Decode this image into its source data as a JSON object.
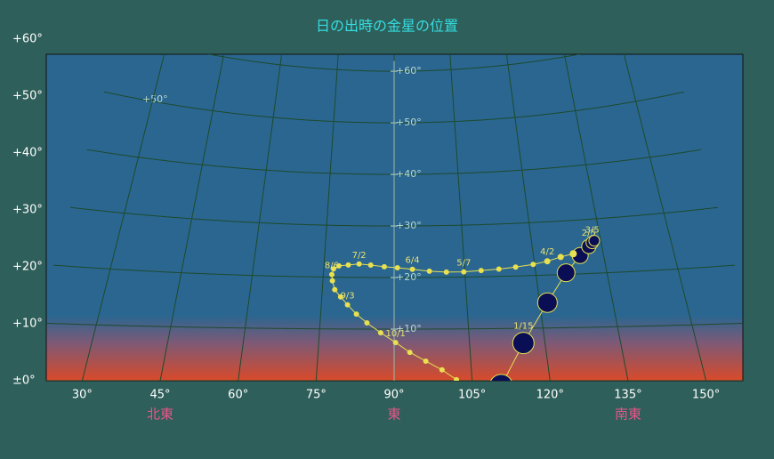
{
  "chart_data": {
    "type": "sky-track",
    "title": "日の出時の金星の位置",
    "xlim": [
      23,
      157
    ],
    "ylim": [
      0,
      60
    ],
    "xticks": [
      {
        "value": 30,
        "label": "30°"
      },
      {
        "value": 45,
        "label": "45°"
      },
      {
        "value": 60,
        "label": "60°"
      },
      {
        "value": 75,
        "label": "75°"
      },
      {
        "value": 90,
        "label": "90°"
      },
      {
        "value": 105,
        "label": "105°"
      },
      {
        "value": 120,
        "label": "120°"
      },
      {
        "value": 135,
        "label": "135°"
      },
      {
        "value": 150,
        "label": "150°"
      }
    ],
    "yticks": [
      {
        "value": 0,
        "label": "±0°"
      },
      {
        "value": 10,
        "label": "+10°"
      },
      {
        "value": 20,
        "label": "+20°"
      },
      {
        "value": 30,
        "label": "+30°"
      },
      {
        "value": 40,
        "label": "+40°"
      },
      {
        "value": 50,
        "label": "+50°"
      },
      {
        "value": 60,
        "label": "+60°"
      }
    ],
    "directions": [
      {
        "value": 45,
        "label": "北東"
      },
      {
        "value": 90,
        "label": "東"
      },
      {
        "value": 135,
        "label": "南東"
      }
    ],
    "grid": true,
    "series": [
      {
        "color": "#e8e050",
        "x": [
          110.5,
          115.7,
          121.6,
          126.4,
          130.0,
          132.2,
          133.1,
          133.6,
          128.6,
          125.8,
          122.8,
          119.7,
          115.9,
          112.3,
          108.5,
          104.8,
          101.1,
          97.5,
          93.9,
          90.7,
          87.9,
          85.0,
          82.5,
          80.2,
          78.2,
          77.1,
          76.8,
          77.0,
          77.6,
          78.9,
          80.4,
          82.3,
          84.5,
          87.3,
          90.3,
          93.1,
          96.2,
          99.3,
          102.0
        ],
        "values": [
          -1,
          7.2,
          14.8,
          20.3,
          23.4,
          25.0,
          25.7,
          26.0,
          23.8,
          23.3,
          22.6,
          22.1,
          21.7,
          21.4,
          21.2,
          21.0,
          21.0,
          21.2,
          21.6,
          21.9,
          22.1,
          22.4,
          22.6,
          22.4,
          22.2,
          21.6,
          20.5,
          19.3,
          17.6,
          16.2,
          14.7,
          12.9,
          11.2,
          9.3,
          7.4,
          5.5,
          3.8,
          2.1,
          0.2
        ],
        "sizes": [
          13,
          12,
          11,
          10,
          9,
          8,
          7,
          6,
          4,
          3.5,
          3.5,
          3,
          3,
          3,
          3,
          3,
          3,
          3,
          3,
          3,
          3,
          3,
          3,
          3,
          3,
          3,
          3,
          3,
          3,
          3,
          3,
          3,
          3,
          3,
          3,
          3,
          3,
          3,
          3
        ],
        "labels": [
          null,
          "1/15",
          null,
          null,
          null,
          "2/5",
          "3/5",
          null,
          null,
          null,
          "4/2",
          null,
          null,
          null,
          null,
          "5/7",
          null,
          null,
          "6/4",
          null,
          null,
          null,
          "7/2",
          null,
          null,
          null,
          "8/6",
          null,
          null,
          null,
          "9/3",
          null,
          null,
          null,
          "10/1",
          null,
          null,
          null,
          null
        ]
      }
    ]
  }
}
